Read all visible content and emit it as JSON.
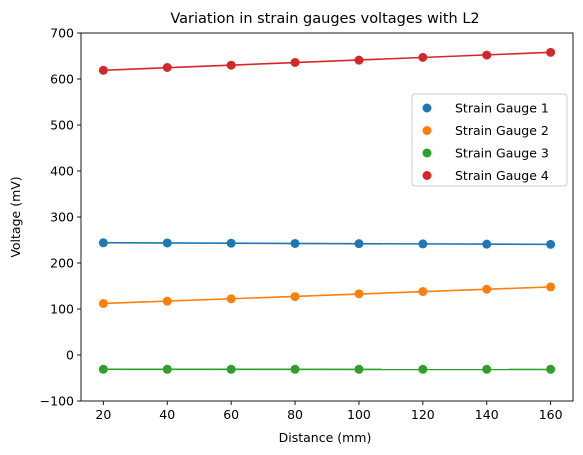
{
  "chart_data": {
    "type": "scatter",
    "title": "Variation in strain gauges voltages with L2",
    "xlabel": "Distance (mm)",
    "ylabel": "Voltage (mV)",
    "xlim": [
      13,
      167
    ],
    "ylim": [
      -100,
      700
    ],
    "xticks": [
      20,
      40,
      60,
      80,
      100,
      120,
      140,
      160
    ],
    "yticks": [
      -100,
      0,
      100,
      200,
      300,
      400,
      500,
      600,
      700
    ],
    "grid": false,
    "legend_position": "center-right",
    "x": [
      20,
      40,
      60,
      80,
      100,
      120,
      140,
      160
    ],
    "series": [
      {
        "name": "Strain Gauge 1",
        "color": "#1f77b4",
        "values": [
          244,
          243.5,
          243,
          242.5,
          242,
          241.5,
          241,
          240.5
        ],
        "fit": [
          244,
          240.5
        ]
      },
      {
        "name": "Strain Gauge 2",
        "color": "#ff7f0e",
        "values": [
          112,
          117,
          122,
          127,
          133,
          138,
          143,
          148
        ],
        "fit": [
          112,
          148
        ]
      },
      {
        "name": "Strain Gauge 3",
        "color": "#2ca02c",
        "values": [
          -31,
          -31,
          -31,
          -31,
          -31,
          -31,
          -31,
          -31
        ],
        "fit": [
          -31,
          -31.5
        ]
      },
      {
        "name": "Strain Gauge 4",
        "color": "#d62728",
        "values": [
          619,
          625,
          630,
          636,
          641,
          647,
          652,
          658
        ],
        "fit": [
          619,
          658
        ]
      }
    ]
  }
}
